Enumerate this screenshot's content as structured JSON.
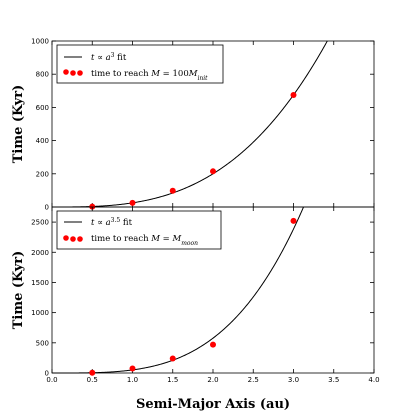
{
  "chart_data": {
    "type": "scatter",
    "xlabel": "Semi-Major Axis (au)",
    "xlim": [
      0.0,
      4.0
    ],
    "xticks": [
      "0.0",
      "0.5",
      "1.0",
      "1.5",
      "2.0",
      "2.5",
      "3.0",
      "3.5",
      "4.0"
    ],
    "panels": [
      {
        "ylabel": "Time (Kyr)",
        "ylim": [
          0,
          1000
        ],
        "yticks": [
          "0",
          "200",
          "400",
          "600",
          "800",
          "1000"
        ],
        "colors": {
          "fit": "#000000",
          "points": "#ff0000"
        },
        "legend": {
          "position": "top-left",
          "fit_label": "t ∝ a³ fit",
          "points_label": "time to reach M = 100 M_init"
        },
        "fit": {
          "coefficient": 25.0,
          "exponent": 3
        },
        "series": [
          {
            "x": [
              0.5,
              1.0,
              1.5,
              2.0,
              3.0
            ],
            "y": [
              2,
              25,
              98,
              215,
              675
            ]
          }
        ]
      },
      {
        "ylabel": "Time (Kyr)",
        "ylim": [
          0,
          2750
        ],
        "yticks": [
          "0",
          "500",
          "1000",
          "1500",
          "2000",
          "2500"
        ],
        "colors": {
          "fit": "#000000",
          "points": "#ff0000"
        },
        "legend": {
          "position": "top-left",
          "fit_label": "t ∝ a^3.5 fit",
          "points_label": "time to reach M = M_moon"
        },
        "fit": {
          "coefficient": 51.0,
          "exponent": 3.5
        },
        "series": [
          {
            "x": [
              0.5,
              1.0,
              1.5,
              2.0,
              3.0
            ],
            "y": [
              5,
              75,
              240,
              470,
              2520
            ]
          }
        ]
      }
    ]
  }
}
